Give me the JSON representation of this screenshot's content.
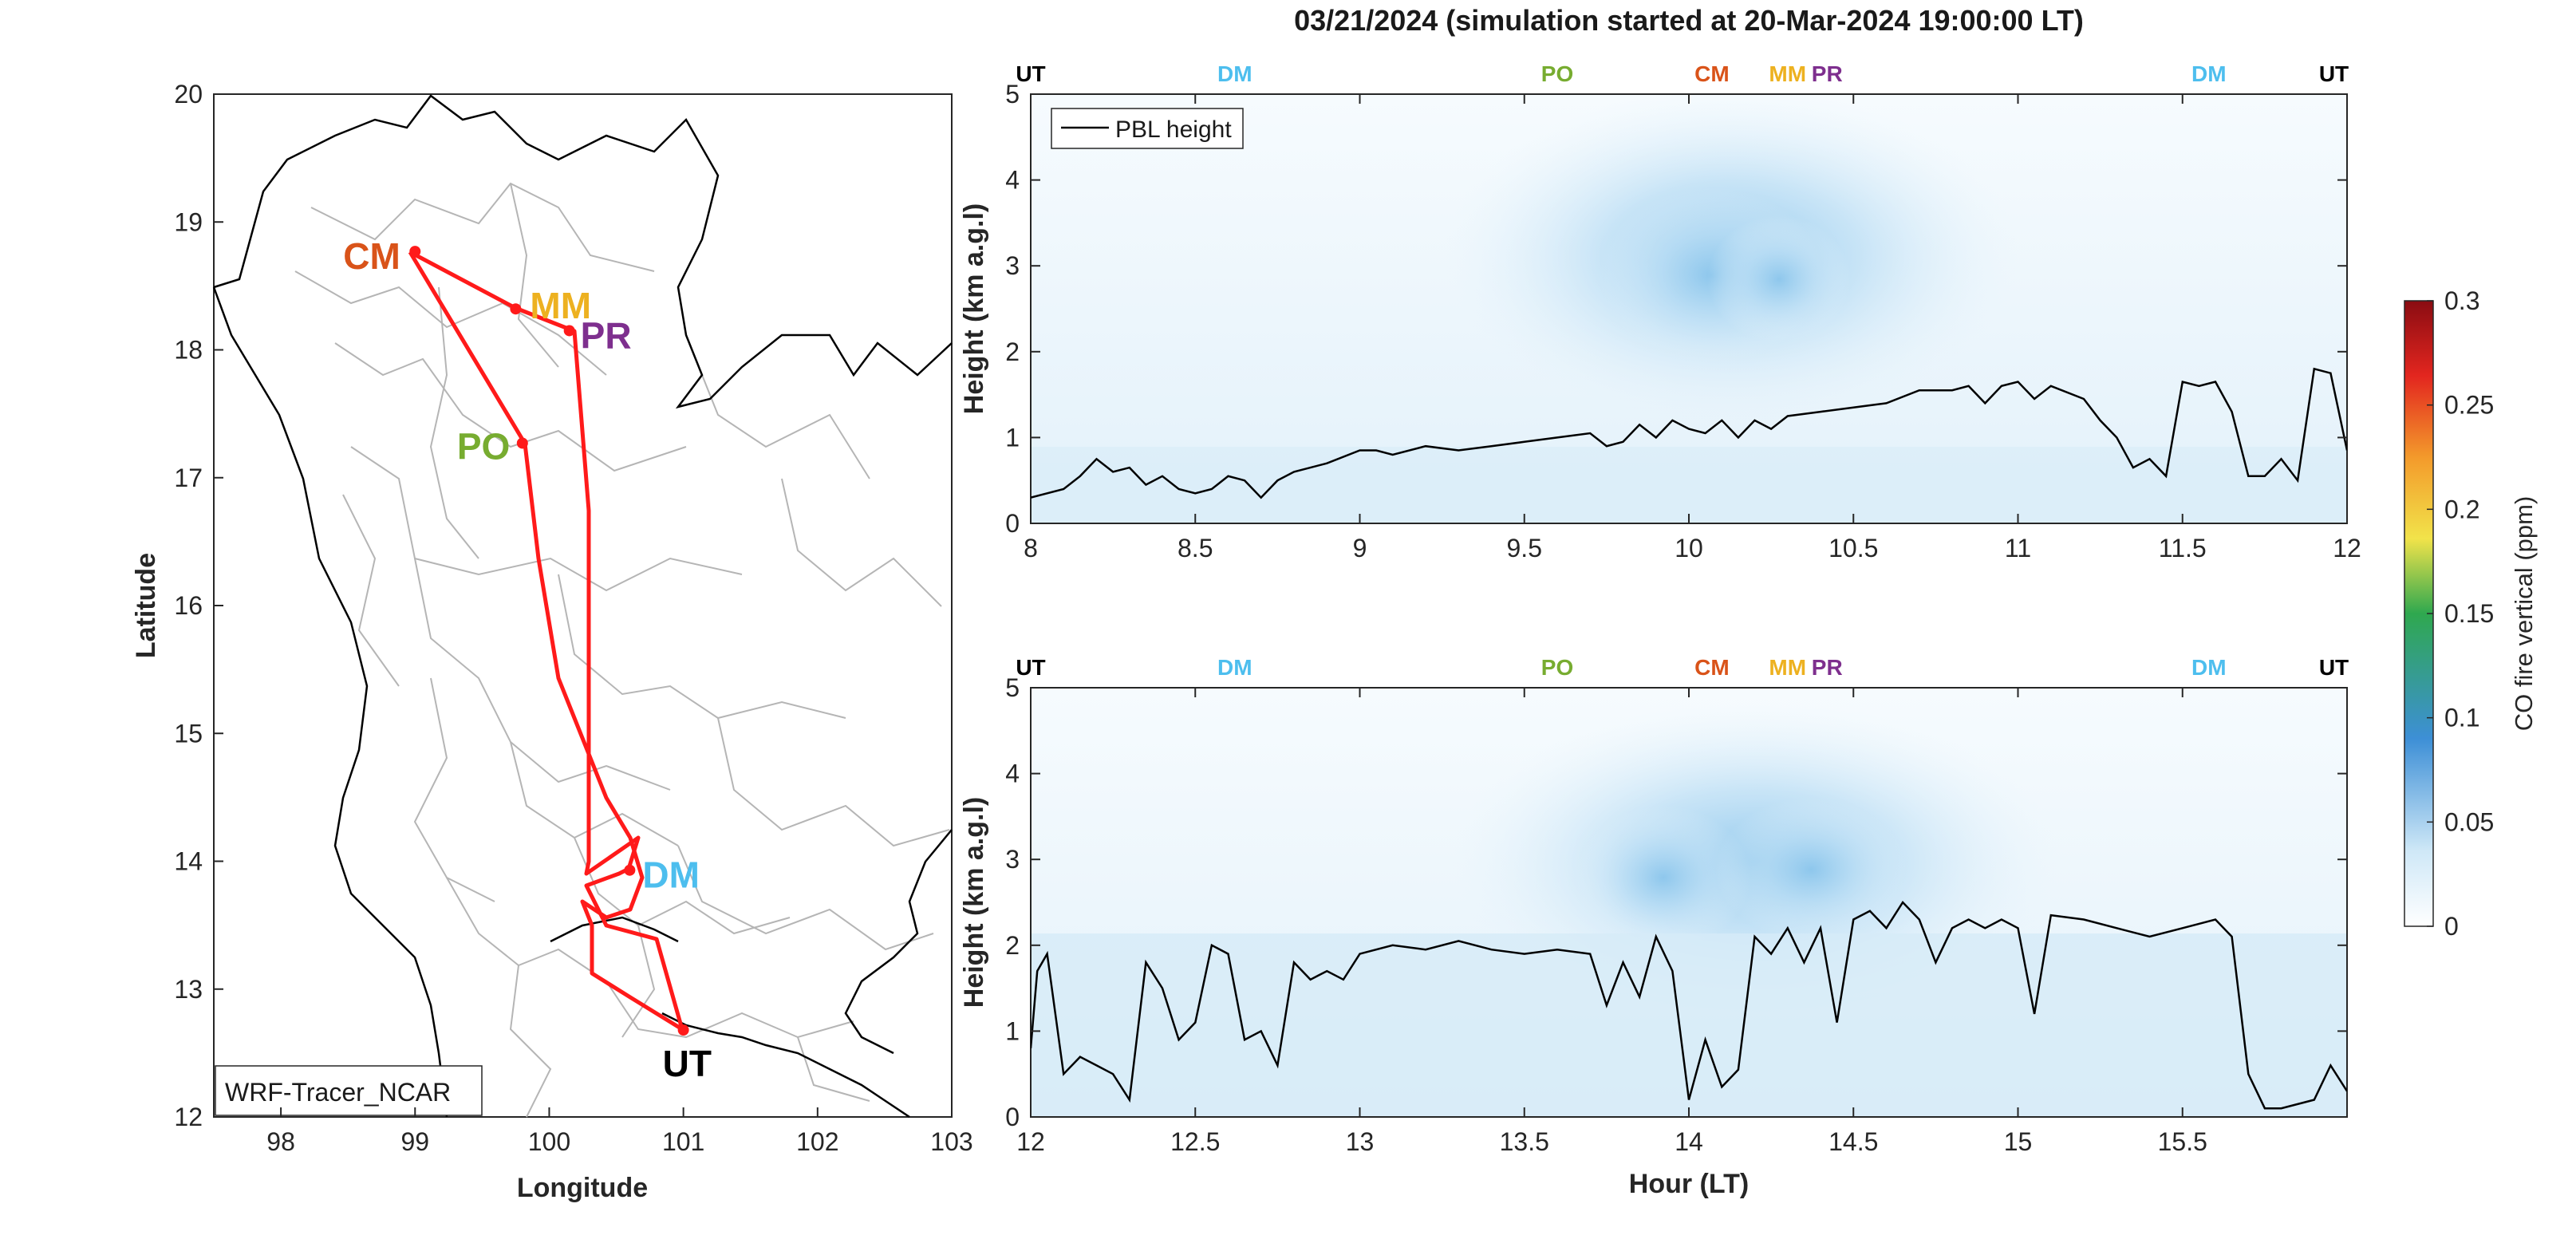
{
  "figure": {
    "title": "03/21/2024 (simulation started at 20-Mar-2024 19:00:00 LT)"
  },
  "map": {
    "xlabel": "Longitude",
    "ylabel": "Latitude",
    "xlim": [
      97.5,
      103
    ],
    "ylim": [
      12,
      20
    ],
    "xticks": [
      "98",
      "99",
      "100",
      "101",
      "102",
      "103"
    ],
    "yticks": [
      "12",
      "13",
      "14",
      "15",
      "16",
      "17",
      "18",
      "19",
      "20"
    ],
    "model_label": "WRF-Tracer_NCAR",
    "route_color": "#ff1a1a",
    "sites": [
      {
        "code": "CM",
        "lon": 99.0,
        "lat": 18.77,
        "color": "#d95319"
      },
      {
        "code": "MM",
        "lon": 99.75,
        "lat": 18.32,
        "color": "#edb120"
      },
      {
        "code": "PR",
        "lon": 100.15,
        "lat": 18.15,
        "color": "#7e2f8e"
      },
      {
        "code": "PO",
        "lon": 99.8,
        "lat": 17.27,
        "color": "#77ac30"
      },
      {
        "code": "DM",
        "lon": 100.6,
        "lat": 13.93,
        "color": "#4dbeee"
      },
      {
        "code": "UT",
        "lon": 101.0,
        "lat": 12.68,
        "color": "#000000"
      }
    ]
  },
  "colorbar": {
    "label": "CO fire vertical (ppm)",
    "ticks": [
      "0",
      "0.05",
      "0.1",
      "0.15",
      "0.2",
      "0.25",
      "0.3"
    ],
    "range": [
      0,
      0.3
    ]
  },
  "legend": {
    "entry": "PBL height"
  },
  "chart_data": [
    {
      "type": "line",
      "panel": "top",
      "xlabel": "",
      "ylabel": "Height (km a.g.l)",
      "xlim": [
        8,
        12
      ],
      "ylim": [
        0,
        5
      ],
      "xticks": [
        "8",
        "8.5",
        "9",
        "9.5",
        "10",
        "10.5",
        "11",
        "11.5",
        "12"
      ],
      "yticks": [
        "0",
        "1",
        "2",
        "3",
        "4",
        "5"
      ],
      "series": [
        {
          "name": "PBL height",
          "x": [
            8.0,
            8.1,
            8.15,
            8.2,
            8.25,
            8.3,
            8.35,
            8.4,
            8.45,
            8.5,
            8.55,
            8.6,
            8.65,
            8.7,
            8.75,
            8.8,
            8.9,
            9.0,
            9.05,
            9.1,
            9.2,
            9.3,
            9.4,
            9.5,
            9.6,
            9.7,
            9.75,
            9.8,
            9.85,
            9.9,
            9.95,
            10.0,
            10.05,
            10.1,
            10.15,
            10.2,
            10.25,
            10.3,
            10.4,
            10.5,
            10.6,
            10.7,
            10.8,
            10.85,
            10.9,
            10.95,
            11.0,
            11.05,
            11.1,
            11.2,
            11.25,
            11.3,
            11.35,
            11.4,
            11.45,
            11.5,
            11.55,
            11.6,
            11.65,
            11.7,
            11.75,
            11.8,
            11.85,
            11.9,
            11.95,
            12.0
          ],
          "y": [
            0.3,
            0.4,
            0.55,
            0.75,
            0.6,
            0.65,
            0.45,
            0.55,
            0.4,
            0.35,
            0.4,
            0.55,
            0.5,
            0.3,
            0.5,
            0.6,
            0.7,
            0.85,
            0.85,
            0.8,
            0.9,
            0.85,
            0.9,
            0.95,
            1.0,
            1.05,
            0.9,
            0.95,
            1.15,
            1.0,
            1.2,
            1.1,
            1.05,
            1.2,
            1.0,
            1.2,
            1.1,
            1.25,
            1.3,
            1.35,
            1.4,
            1.55,
            1.55,
            1.6,
            1.4,
            1.6,
            1.65,
            1.45,
            1.6,
            1.45,
            1.2,
            1.0,
            0.65,
            0.75,
            0.55,
            1.65,
            1.6,
            1.65,
            1.3,
            0.55,
            0.55,
            0.75,
            0.5,
            1.8,
            1.75,
            0.85
          ]
        }
      ],
      "event_labels": [
        {
          "code": "UT",
          "x": 8.0,
          "color": "#000000"
        },
        {
          "code": "DM",
          "x": 8.62,
          "color": "#4dbeee"
        },
        {
          "code": "PO",
          "x": 9.6,
          "color": "#77ac30"
        },
        {
          "code": "CM",
          "x": 10.07,
          "color": "#d95319"
        },
        {
          "code": "MM",
          "x": 10.3,
          "color": "#edb120"
        },
        {
          "code": "PR",
          "x": 10.42,
          "color": "#7e2f8e"
        },
        {
          "code": "DM",
          "x": 11.58,
          "color": "#4dbeee"
        },
        {
          "code": "UT",
          "x": 11.96,
          "color": "#000000"
        }
      ]
    },
    {
      "type": "line",
      "panel": "bottom",
      "xlabel": "Hour (LT)",
      "ylabel": "Height (km a.g.l)",
      "xlim": [
        12,
        16
      ],
      "ylim": [
        0,
        5
      ],
      "xticks": [
        "12",
        "12.5",
        "13",
        "13.5",
        "14",
        "14.5",
        "15",
        "15.5"
      ],
      "yticks": [
        "0",
        "1",
        "2",
        "3",
        "4",
        "5"
      ],
      "series": [
        {
          "name": "PBL height",
          "x": [
            12.0,
            12.02,
            12.05,
            12.1,
            12.15,
            12.2,
            12.25,
            12.3,
            12.35,
            12.4,
            12.45,
            12.5,
            12.55,
            12.6,
            12.65,
            12.7,
            12.75,
            12.8,
            12.85,
            12.9,
            12.95,
            13.0,
            13.1,
            13.2,
            13.3,
            13.4,
            13.5,
            13.6,
            13.7,
            13.75,
            13.8,
            13.85,
            13.9,
            13.95,
            14.0,
            14.05,
            14.1,
            14.15,
            14.2,
            14.25,
            14.3,
            14.35,
            14.4,
            14.45,
            14.5,
            14.55,
            14.6,
            14.65,
            14.7,
            14.75,
            14.8,
            14.85,
            14.9,
            14.95,
            15.0,
            15.05,
            15.1,
            15.2,
            15.3,
            15.4,
            15.5,
            15.55,
            15.6,
            15.65,
            15.7,
            15.75,
            15.8,
            15.9,
            15.95,
            16.0
          ],
          "y": [
            0.8,
            1.7,
            1.9,
            0.5,
            0.7,
            0.6,
            0.5,
            0.2,
            1.8,
            1.5,
            0.9,
            1.1,
            2.0,
            1.9,
            0.9,
            1.0,
            0.6,
            1.8,
            1.6,
            1.7,
            1.6,
            1.9,
            2.0,
            1.95,
            2.05,
            1.95,
            1.9,
            1.95,
            1.9,
            1.3,
            1.8,
            1.4,
            2.1,
            1.7,
            0.2,
            0.9,
            0.35,
            0.55,
            2.1,
            1.9,
            2.2,
            1.8,
            2.2,
            1.1,
            2.3,
            2.4,
            2.2,
            2.5,
            2.3,
            1.8,
            2.2,
            2.3,
            2.2,
            2.3,
            2.2,
            1.2,
            2.35,
            2.3,
            2.2,
            2.1,
            2.2,
            2.25,
            2.3,
            2.1,
            0.5,
            0.1,
            0.1,
            0.2,
            0.6,
            0.3
          ]
        }
      ],
      "event_labels": [
        {
          "code": "UT",
          "x": 12.0,
          "color": "#000000"
        },
        {
          "code": "DM",
          "x": 12.62,
          "color": "#4dbeee"
        },
        {
          "code": "PO",
          "x": 13.6,
          "color": "#77ac30"
        },
        {
          "code": "CM",
          "x": 14.07,
          "color": "#d95319"
        },
        {
          "code": "MM",
          "x": 14.3,
          "color": "#edb120"
        },
        {
          "code": "PR",
          "x": 14.42,
          "color": "#7e2f8e"
        },
        {
          "code": "DM",
          "x": 15.58,
          "color": "#4dbeee"
        },
        {
          "code": "UT",
          "x": 15.96,
          "color": "#000000"
        }
      ]
    }
  ]
}
